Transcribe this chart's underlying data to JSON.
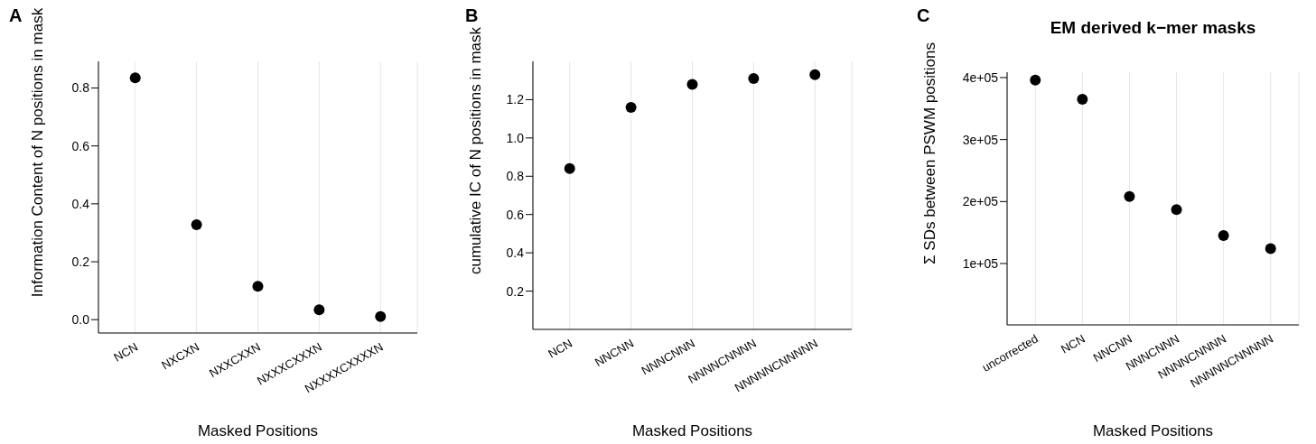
{
  "chart_data": [
    {
      "type": "scatter",
      "annotations": [
        "A"
      ],
      "ylabel": "Information Content of N positions in mask",
      "xlabel": "Masked Positions",
      "categories": [
        "NCN",
        "NXCXN",
        "NXXCXXN",
        "NXXXCXXXN",
        "NXXXXCXXXXN"
      ],
      "values": [
        0.835,
        0.328,
        0.115,
        0.034,
        0.011
      ],
      "color": "#000000",
      "marker": "circle",
      "grid": "x",
      "ylim": [
        -0.046,
        0.892
      ],
      "yticks": [
        {
          "value": 0,
          "label": "0.0"
        },
        0.2,
        0.4,
        0.6,
        0.8
      ]
    },
    {
      "type": "scatter",
      "annotations": [
        "B"
      ],
      "ylabel": "cumulative IC of N positions in mask",
      "xlabel": "Masked Positions",
      "categories": [
        "NCN",
        "NNCNN",
        "NNNCNNN",
        "NNNNCNNNN",
        "NNNNNCNNNNN"
      ],
      "values": [
        0.84,
        1.16,
        1.28,
        1.31,
        1.33
      ],
      "color": "#000000",
      "marker": "circle",
      "grid": "x",
      "ylim": [
        0,
        1.4
      ],
      "yticks": [
        0.2,
        0.4,
        0.6,
        0.8,
        {
          "value": 1,
          "label": "1.0"
        },
        1.2
      ]
    },
    {
      "type": "scatter",
      "annotations": [
        "C"
      ],
      "title": "EM derived k−mer masks",
      "ylabel": "Σ SDs between PSWM positions",
      "xlabel": "Masked Positions",
      "categories": [
        "uncorrected",
        "NCN",
        "NNCNN",
        "NNNCNNN",
        "NNNNCNNNN",
        "NNNNNCNNNNN"
      ],
      "values": [
        396000,
        365000,
        208000,
        187000,
        145000,
        124000
      ],
      "color": "#000000",
      "marker": "circle",
      "grid": "x",
      "ylim": [
        1000,
        408700
      ],
      "yticks": [
        {
          "value": 100000,
          "label": "1e+05"
        },
        {
          "value": 200000,
          "label": "2e+05"
        },
        {
          "value": 300000,
          "label": "3e+05"
        },
        {
          "value": 400000,
          "label": "4e+05"
        }
      ]
    }
  ]
}
